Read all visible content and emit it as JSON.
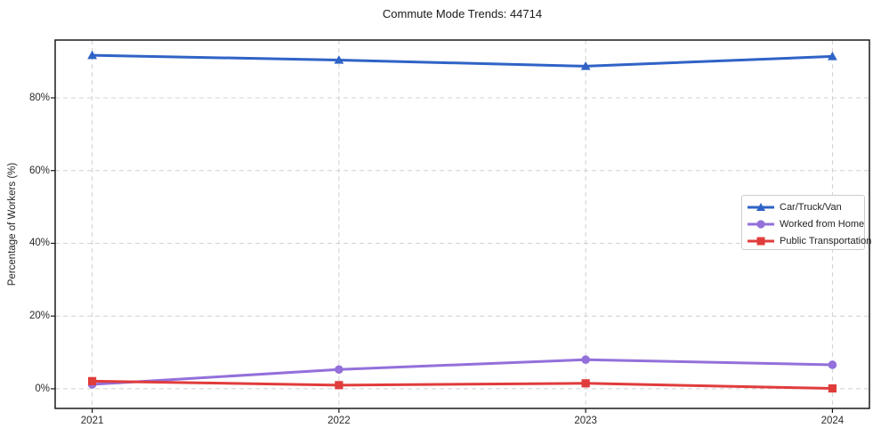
{
  "figure": {
    "title": "Commute Mode Trends: 44714"
  },
  "chart_data": {
    "type": "line",
    "title": "Commute Mode Trends: 44714",
    "xlabel": "",
    "ylabel": "Percentage of Workers (%)",
    "categories": [
      "2021",
      "2022",
      "2023",
      "2024"
    ],
    "x_values": [
      2021,
      2022,
      2023,
      2024
    ],
    "series": [
      {
        "name": "Car/Truck/Van",
        "color": "#2f63c6",
        "marker": "triangle",
        "values": [
          91.7,
          90.4,
          88.7,
          91.4
        ]
      },
      {
        "name": "Worked from Home",
        "color": "#9370db",
        "marker": "circle",
        "values": [
          1.2,
          5.3,
          8.0,
          6.6
        ]
      },
      {
        "name": "Public Transportation",
        "color": "#e13c3c",
        "marker": "square",
        "values": [
          2.1,
          1.0,
          1.5,
          0.1
        ]
      }
    ],
    "yticks": [
      0,
      20,
      40,
      60,
      80
    ],
    "ytick_labels": [
      "0%",
      "20%",
      "40%",
      "60%",
      "80%"
    ],
    "ylim": [
      -5.4,
      95.9
    ],
    "xlim": [
      2020.85,
      2024.15
    ],
    "grid": true,
    "grid_style": "dashed",
    "legend_position": "center-right",
    "colors": {
      "background": "#ffffff",
      "spine": "#1a1a1a",
      "gridline": "#d0d0d0",
      "tick_text": "#2a2a2a"
    }
  }
}
